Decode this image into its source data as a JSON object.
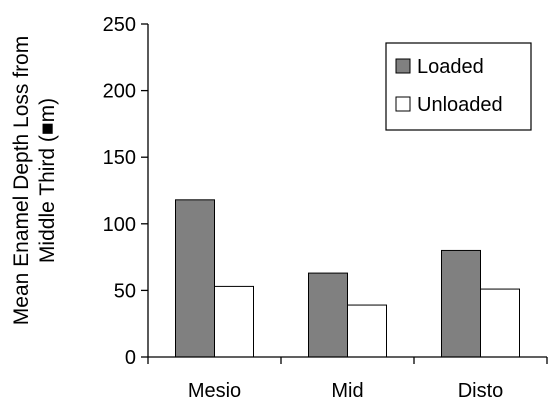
{
  "chart_data": {
    "type": "bar",
    "title": "",
    "xlabel": "",
    "ylabel_lines": [
      "Mean Enamel Depth Loss from",
      "Middle Third (■m)"
    ],
    "categories": [
      "Mesio",
      "Mid",
      "Disto"
    ],
    "series": [
      {
        "name": "Loaded",
        "values": [
          118,
          63,
          80
        ],
        "color": "#808080"
      },
      {
        "name": "Unloaded",
        "values": [
          53,
          39,
          51
        ],
        "color": "#ffffff"
      }
    ],
    "ylim": [
      0,
      250
    ],
    "yticks": [
      0,
      50,
      100,
      150,
      200,
      250
    ],
    "grid": false,
    "legend_position": "top-right"
  }
}
